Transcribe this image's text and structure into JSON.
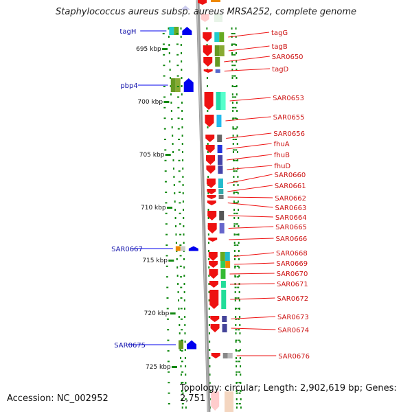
{
  "title": "Staphylococcus aureus subsp. aureus MRSA252, complete genome",
  "accession": "Accession: NC_002952",
  "topology": "Topology: circular; Length: 2,902,619 bp; Genes: 2,751",
  "colors": {
    "forward": "#ee1111",
    "reverse": "#0000ee",
    "backbone": "#999999",
    "tick": "#118811",
    "right_label": "#cc1111",
    "left_label": "#1111aa"
  },
  "scale_labels": [
    "695 kbp",
    "700 kbp",
    "705 kbp",
    "710 kbp",
    "715 kbp",
    "720 kbp",
    "725 kbp"
  ],
  "left_genes": [
    "tagH",
    "pbp4",
    "SAR0667",
    "SAR0675"
  ],
  "right_genes": [
    "tagG",
    "tagB",
    "SAR0650",
    "tagD",
    "SAR0653",
    "SAR0655",
    "SAR0656",
    "fhuA",
    "fhuB",
    "fhuD",
    "SAR0660",
    "SAR0661",
    "SAR0662",
    "SAR0663",
    "SAR0664",
    "SAR0665",
    "SAR0666",
    "SAR0668",
    "SAR0669",
    "SAR0670",
    "SAR0671",
    "SAR0672",
    "SAR0673",
    "SAR0674",
    "SAR0676"
  ]
}
